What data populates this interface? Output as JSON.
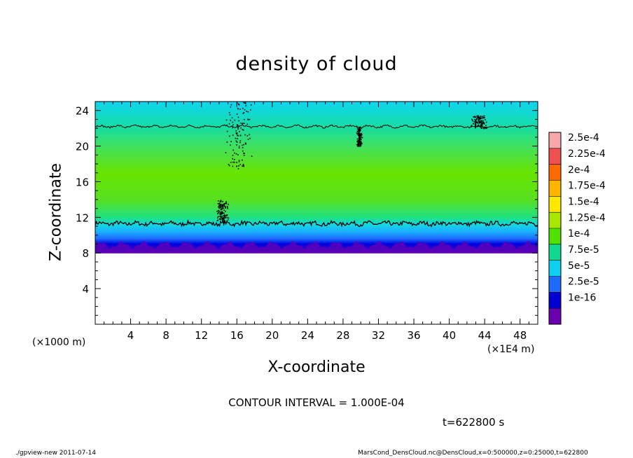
{
  "chart_data": {
    "type": "heatmap",
    "title": "density of cloud",
    "xlabel": "X-coordinate",
    "ylabel": "Z-coordinate",
    "x_unit_label": "(×1E4 m)",
    "y_unit_label": "(×1000 m)",
    "xlim": [
      0,
      50
    ],
    "ylim": [
      0,
      25
    ],
    "x_ticks": [
      4,
      8,
      12,
      16,
      20,
      24,
      28,
      32,
      36,
      40,
      44,
      48
    ],
    "y_ticks": [
      4,
      8,
      12,
      16,
      20,
      24
    ],
    "contour_interval_text": "CONTOUR INTERVAL = 1.000E-04",
    "colorbar": {
      "labels": [
        "2.5e-4",
        "2.25e-4",
        "2e-4",
        "1.75e-4",
        "1.5e-4",
        "1.25e-4",
        "1e-4",
        "7.5e-5",
        "5e-5",
        "2.5e-5",
        "1e-16"
      ],
      "colors": [
        "#f7a8a8",
        "#f05050",
        "#ff6a00",
        "#ffb400",
        "#ffe800",
        "#a8e800",
        "#50e000",
        "#10d890",
        "#10d0f0",
        "#1f6bff",
        "#0000d0",
        "#6a00b0"
      ]
    },
    "field_profile": [
      {
        "z": 8.0,
        "value": "1e-16",
        "color": "#6a00b0"
      },
      {
        "z": 8.4,
        "value": "2.5e-5",
        "color": "#3000c8"
      },
      {
        "z": 9.0,
        "value": "2.5e-5",
        "color": "#0000e0"
      },
      {
        "z": 9.6,
        "value": "5e-5",
        "color": "#1f6bff"
      },
      {
        "z": 10.4,
        "value": "7.5e-5",
        "color": "#1bb0ff"
      },
      {
        "z": 11.2,
        "value": "1e-4",
        "color": "#14d8e0"
      },
      {
        "z": 12.0,
        "value": "1.25e-4",
        "color": "#20e080"
      },
      {
        "z": 14.0,
        "value": "1.25e-4",
        "color": "#58e020"
      },
      {
        "z": 17.0,
        "value": "1.5e-4",
        "color": "#68e400"
      },
      {
        "z": 20.0,
        "value": "1.25e-4",
        "color": "#40e060"
      },
      {
        "z": 22.0,
        "value": "1e-4",
        "color": "#18dca0"
      },
      {
        "z": 24.0,
        "value": "7.5e-5",
        "color": "#10d8d8"
      },
      {
        "z": 25.0,
        "value": "7.5e-5",
        "color": "#10d4f0"
      }
    ],
    "contour_levels_z": [
      11.3,
      22.2
    ],
    "cloud_base_z": 8.0,
    "time_text": "t=622800 s"
  },
  "footer": {
    "left": "./gpview-new  2011-07-14",
    "right": "MarsCond_DensCloud.nc@DensCloud,x=0:500000,z=0:25000,t=622800"
  }
}
